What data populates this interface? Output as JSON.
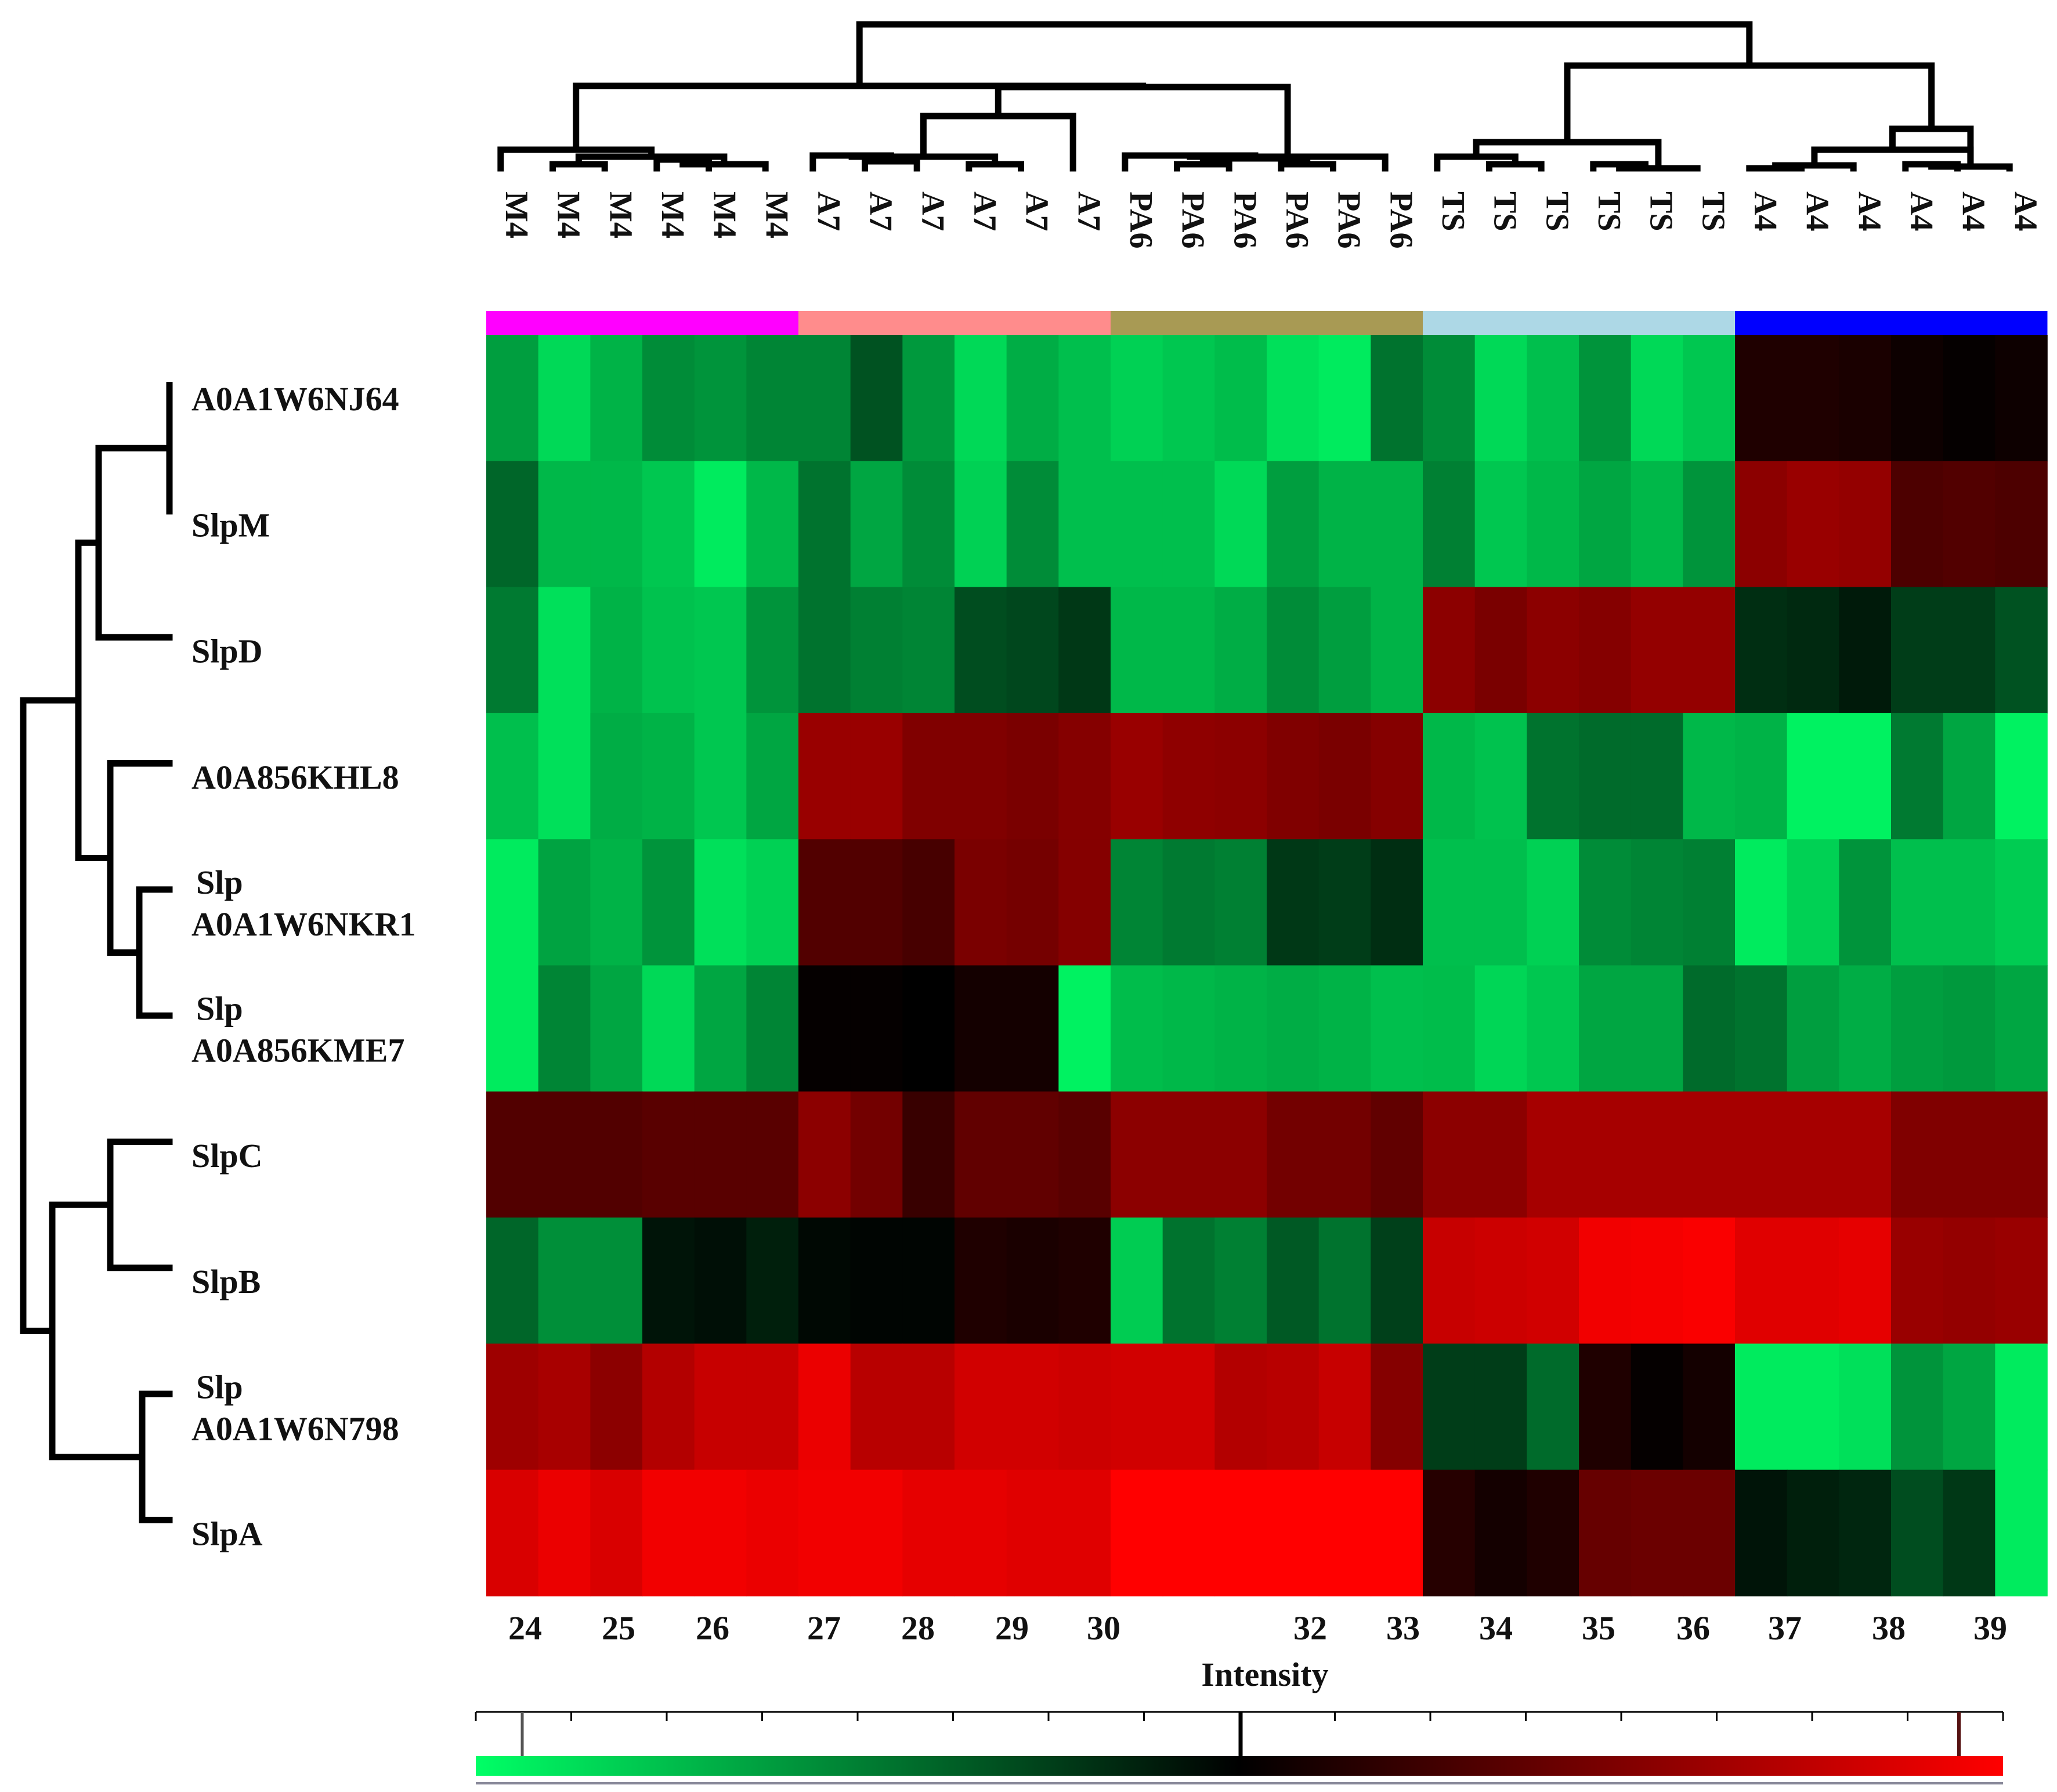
{
  "chart_data": {
    "type": "heatmap",
    "x_axis_label": "Intensity",
    "x_ticks": [
      "24",
      "25",
      "26",
      "27",
      "28",
      "29",
      "30",
      "32",
      "33",
      "34",
      "35",
      "36",
      "37",
      "38",
      "39"
    ],
    "x_tick_positions_data": [
      24,
      25,
      26,
      27,
      28,
      29,
      30,
      32,
      33,
      34,
      35,
      36,
      37,
      38,
      39
    ],
    "samples": [
      "M4",
      "M4",
      "M4",
      "M4",
      "M4",
      "M4",
      "A7",
      "A7",
      "A7",
      "A7",
      "A7",
      "A7",
      "PA6",
      "PA6",
      "PA6",
      "PA6",
      "PA6",
      "PA6",
      "TS",
      "TS",
      "TS",
      "TS",
      "TS",
      "TS",
      "A4",
      "A4",
      "A4",
      "A4",
      "A4",
      "A4"
    ],
    "groups": [
      {
        "name": "M4",
        "color": "#ff00ff"
      },
      {
        "name": "A7",
        "color": "#ff8c8c"
      },
      {
        "name": "PA6",
        "color": "#a89a54"
      },
      {
        "name": "TS",
        "color": "#add8e6"
      },
      {
        "name": "A4",
        "color": "#0000ff"
      }
    ],
    "row_labels": [
      [
        "A0A1W6NJ64"
      ],
      [
        "SlpM"
      ],
      [
        "SlpD"
      ],
      [
        "A0A856KHL8"
      ],
      [
        "Slp",
        "A0A1W6NKR1"
      ],
      [
        "Slp",
        "A0A856KME7"
      ],
      [
        "SlpC"
      ],
      [
        "SlpB"
      ],
      [
        "Slp",
        "A0A1W6N798"
      ],
      [
        "SlpA"
      ]
    ],
    "value_scale": {
      "min": -1,
      "center": 0,
      "max": 1,
      "low_color": "#00ff66",
      "mid_color": "#000000",
      "high_color": "#ff0000"
    },
    "values": [
      [
        -0.62,
        -0.85,
        -0.7,
        -0.55,
        -0.58,
        -0.52,
        -0.52,
        -0.32,
        -0.6,
        -0.85,
        -0.68,
        -0.75,
        -0.82,
        -0.78,
        -0.74,
        -0.88,
        -0.92,
        -0.45,
        -0.55,
        -0.85,
        -0.75,
        -0.58,
        -0.85,
        -0.78,
        0.12,
        0.12,
        0.1,
        0.05,
        0.02,
        0.05
      ],
      [
        -0.4,
        -0.72,
        -0.72,
        -0.78,
        -0.92,
        -0.72,
        -0.45,
        -0.65,
        -0.55,
        -0.82,
        -0.55,
        -0.75,
        -0.75,
        -0.75,
        -0.85,
        -0.62,
        -0.7,
        -0.7,
        -0.5,
        -0.78,
        -0.72,
        -0.65,
        -0.72,
        -0.58,
        0.55,
        0.6,
        0.58,
        0.3,
        0.32,
        0.3
      ],
      [
        -0.48,
        -0.88,
        -0.7,
        -0.76,
        -0.78,
        -0.58,
        -0.45,
        -0.5,
        -0.52,
        -0.3,
        -0.28,
        -0.22,
        -0.72,
        -0.72,
        -0.68,
        -0.55,
        -0.62,
        -0.7,
        0.55,
        0.48,
        0.55,
        0.52,
        0.58,
        0.58,
        -0.18,
        -0.16,
        -0.1,
        -0.24,
        -0.24,
        -0.32
      ],
      [
        -0.75,
        -0.88,
        -0.68,
        -0.7,
        -0.78,
        -0.65,
        0.6,
        0.6,
        0.5,
        0.5,
        0.48,
        0.52,
        0.6,
        0.56,
        0.55,
        0.5,
        0.48,
        0.52,
        -0.72,
        -0.76,
        -0.45,
        -0.42,
        -0.42,
        -0.72,
        -0.7,
        -0.95,
        -0.95,
        -0.48,
        -0.65,
        -0.95
      ],
      [
        -0.92,
        -0.64,
        -0.7,
        -0.58,
        -0.88,
        -0.82,
        0.32,
        0.32,
        0.28,
        0.48,
        0.46,
        0.52,
        -0.52,
        -0.48,
        -0.5,
        -0.22,
        -0.24,
        -0.18,
        -0.75,
        -0.75,
        -0.82,
        -0.55,
        -0.52,
        -0.5,
        -0.92,
        -0.82,
        -0.58,
        -0.75,
        -0.75,
        -0.8
      ],
      [
        -0.92,
        -0.52,
        -0.65,
        -0.85,
        -0.65,
        -0.52,
        0.02,
        0.02,
        0.0,
        0.08,
        0.08,
        -0.95,
        -0.74,
        -0.72,
        -0.7,
        -0.68,
        -0.7,
        -0.75,
        -0.74,
        -0.84,
        -0.78,
        -0.65,
        -0.65,
        -0.42,
        -0.45,
        -0.62,
        -0.68,
        -0.62,
        -0.6,
        -0.65
      ],
      [
        0.32,
        0.32,
        0.32,
        0.35,
        0.35,
        0.35,
        0.55,
        0.45,
        0.22,
        0.38,
        0.38,
        0.35,
        0.55,
        0.55,
        0.55,
        0.45,
        0.45,
        0.38,
        0.55,
        0.55,
        0.65,
        0.65,
        0.65,
        0.65,
        0.65,
        0.65,
        0.65,
        0.5,
        0.5,
        0.5
      ],
      [
        -0.4,
        -0.56,
        -0.56,
        -0.08,
        -0.06,
        -0.12,
        -0.03,
        -0.02,
        -0.02,
        0.12,
        0.1,
        0.12,
        -0.8,
        -0.45,
        -0.5,
        -0.35,
        -0.45,
        -0.25,
        0.78,
        0.8,
        0.82,
        0.95,
        0.96,
        0.98,
        0.88,
        0.88,
        0.9,
        0.6,
        0.58,
        0.6
      ],
      [
        0.62,
        0.66,
        0.55,
        0.7,
        0.78,
        0.78,
        0.92,
        0.72,
        0.72,
        0.82,
        0.82,
        0.8,
        0.82,
        0.82,
        0.7,
        0.72,
        0.78,
        0.52,
        -0.24,
        -0.24,
        -0.42,
        0.12,
        0.02,
        0.08,
        -0.92,
        -0.92,
        -0.88,
        -0.58,
        -0.65,
        -0.92
      ],
      [
        0.85,
        0.92,
        0.85,
        0.95,
        0.95,
        0.92,
        0.95,
        0.95,
        0.9,
        0.9,
        0.88,
        0.88,
        1.0,
        1.0,
        1.0,
        1.0,
        1.0,
        1.0,
        0.15,
        0.08,
        0.12,
        0.4,
        0.42,
        0.42,
        -0.08,
        -0.12,
        -0.15,
        -0.3,
        -0.22,
        -0.92
      ]
    ]
  }
}
